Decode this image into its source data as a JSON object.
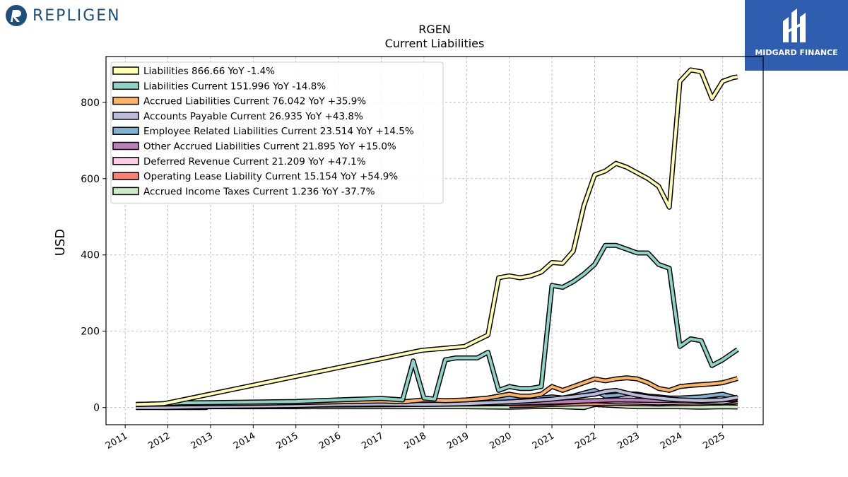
{
  "brand_left": "REPLIGEN",
  "brand_right": "MIDGARD FINANCE",
  "chart_data": {
    "type": "line",
    "title": "RGEN",
    "subtitle": "Current  Liabilities",
    "ylabel": "USD",
    "xlabel": "",
    "ylim": [
      -45,
      920
    ],
    "xlim": [
      2010.55,
      2025.95
    ],
    "yticks": [
      0,
      200,
      400,
      600,
      800
    ],
    "xticks": [
      "2011",
      "2012",
      "2013",
      "2014",
      "2015",
      "2016",
      "2017",
      "2018",
      "2019",
      "2020",
      "2021",
      "2022",
      "2023",
      "2024",
      "2025"
    ],
    "grid": true,
    "legend_position": "top-left",
    "series": [
      {
        "name": "Liabilities",
        "legend": "Liabilities  866.66 YoY -1.4%",
        "color": "#ffffb3",
        "points": [
          [
            2011.25,
            8
          ],
          [
            2011.9,
            10
          ],
          [
            2012.25,
            18
          ],
          [
            2017.95,
            150
          ],
          [
            2018.95,
            160
          ],
          [
            2019.5,
            190
          ],
          [
            2019.75,
            340
          ],
          [
            2020.0,
            345
          ],
          [
            2020.25,
            340
          ],
          [
            2020.5,
            345
          ],
          [
            2020.75,
            355
          ],
          [
            2021.0,
            380
          ],
          [
            2021.25,
            378
          ],
          [
            2021.5,
            410
          ],
          [
            2021.75,
            530
          ],
          [
            2022.0,
            610
          ],
          [
            2022.25,
            620
          ],
          [
            2022.5,
            640
          ],
          [
            2022.75,
            630
          ],
          [
            2023.0,
            615
          ],
          [
            2023.25,
            600
          ],
          [
            2023.5,
            580
          ],
          [
            2023.75,
            525
          ],
          [
            2024.0,
            855
          ],
          [
            2024.25,
            885
          ],
          [
            2024.5,
            880
          ],
          [
            2024.75,
            810
          ],
          [
            2025.0,
            855
          ],
          [
            2025.25,
            865
          ],
          [
            2025.35,
            866.66
          ]
        ]
      },
      {
        "name": "Liabilities Current",
        "legend": "Liabilities Current  151.996 YoY -14.8%",
        "color": "#8dd3c7",
        "points": [
          [
            2011.25,
            8
          ],
          [
            2011.9,
            10
          ],
          [
            2012.25,
            12
          ],
          [
            2013.0,
            13
          ],
          [
            2015.0,
            16
          ],
          [
            2016.0,
            20
          ],
          [
            2017.0,
            24
          ],
          [
            2017.5,
            20
          ],
          [
            2017.75,
            122
          ],
          [
            2018.0,
            25
          ],
          [
            2018.25,
            22
          ],
          [
            2018.5,
            125
          ],
          [
            2018.75,
            130
          ],
          [
            2019.0,
            130
          ],
          [
            2019.25,
            130
          ],
          [
            2019.5,
            145
          ],
          [
            2019.75,
            45
          ],
          [
            2020.0,
            55
          ],
          [
            2020.25,
            50
          ],
          [
            2020.5,
            50
          ],
          [
            2020.75,
            55
          ],
          [
            2021.0,
            320
          ],
          [
            2021.25,
            315
          ],
          [
            2021.5,
            330
          ],
          [
            2021.75,
            350
          ],
          [
            2022.0,
            375
          ],
          [
            2022.25,
            425
          ],
          [
            2022.5,
            425
          ],
          [
            2022.75,
            415
          ],
          [
            2023.0,
            405
          ],
          [
            2023.25,
            405
          ],
          [
            2023.5,
            375
          ],
          [
            2023.75,
            365
          ],
          [
            2024.0,
            160
          ],
          [
            2024.25,
            180
          ],
          [
            2024.5,
            175
          ],
          [
            2024.75,
            110
          ],
          [
            2025.0,
            125
          ],
          [
            2025.35,
            151.996
          ]
        ]
      },
      {
        "name": "Accrued Liabilities Current",
        "legend": "Accrued Liabilities Current  76.042 YoY +35.9%",
        "color": "#fdb462",
        "points": [
          [
            2011.25,
            8
          ],
          [
            2012.0,
            9
          ],
          [
            2013.0,
            10
          ],
          [
            2014.0,
            11
          ],
          [
            2015.0,
            13
          ],
          [
            2016.0,
            15
          ],
          [
            2017.0,
            17
          ],
          [
            2017.5,
            15
          ],
          [
            2018.0,
            20
          ],
          [
            2018.5,
            18
          ],
          [
            2019.0,
            20
          ],
          [
            2019.5,
            25
          ],
          [
            2020.0,
            35
          ],
          [
            2020.25,
            30
          ],
          [
            2020.5,
            30
          ],
          [
            2020.75,
            35
          ],
          [
            2021.0,
            55
          ],
          [
            2021.25,
            45
          ],
          [
            2021.5,
            55
          ],
          [
            2021.75,
            65
          ],
          [
            2022.0,
            75
          ],
          [
            2022.25,
            70
          ],
          [
            2022.5,
            75
          ],
          [
            2022.75,
            78
          ],
          [
            2023.0,
            75
          ],
          [
            2023.25,
            65
          ],
          [
            2023.5,
            50
          ],
          [
            2023.75,
            45
          ],
          [
            2024.0,
            55
          ],
          [
            2024.25,
            58
          ],
          [
            2024.5,
            60
          ],
          [
            2024.75,
            62
          ],
          [
            2025.0,
            65
          ],
          [
            2025.35,
            76.042
          ]
        ]
      },
      {
        "name": "Accounts Payable Current",
        "legend": "Accounts Payable Current  26.935 YoY +43.8%",
        "color": "#bebada",
        "points": [
          [
            2011.25,
            0
          ],
          [
            2011.9,
            0
          ],
          [
            2013.0,
            3
          ],
          [
            2015.0,
            5
          ],
          [
            2016.0,
            8
          ],
          [
            2017.0,
            9
          ],
          [
            2018.0,
            8
          ],
          [
            2019.0,
            10
          ],
          [
            2020.0,
            15
          ],
          [
            2020.5,
            18
          ],
          [
            2021.0,
            22
          ],
          [
            2021.5,
            28
          ],
          [
            2022.0,
            35
          ],
          [
            2022.25,
            42
          ],
          [
            2022.5,
            45
          ],
          [
            2022.75,
            38
          ],
          [
            2023.0,
            32
          ],
          [
            2023.25,
            28
          ],
          [
            2023.5,
            25
          ],
          [
            2023.75,
            22
          ],
          [
            2024.0,
            20
          ],
          [
            2024.5,
            18
          ],
          [
            2025.0,
            20
          ],
          [
            2025.35,
            26.935
          ]
        ]
      },
      {
        "name": "Employee Related Liabilities Current",
        "legend": "Employee Related Liabilities Current  23.514 YoY +14.5%",
        "color": "#80b1d3",
        "points": [
          [
            2011.25,
            5
          ],
          [
            2012.0,
            6
          ],
          [
            2013.0,
            8
          ],
          [
            2014.0,
            9
          ],
          [
            2015.0,
            10
          ],
          [
            2016.0,
            12
          ],
          [
            2017.0,
            12
          ],
          [
            2018.0,
            12
          ],
          [
            2019.0,
            14
          ],
          [
            2019.5,
            18
          ],
          [
            2020.0,
            25
          ],
          [
            2020.5,
            22
          ],
          [
            2021.0,
            28
          ],
          [
            2021.25,
            25
          ],
          [
            2021.5,
            30
          ],
          [
            2021.75,
            38
          ],
          [
            2022.0,
            45
          ],
          [
            2022.25,
            30
          ],
          [
            2022.5,
            32
          ],
          [
            2022.75,
            36
          ],
          [
            2023.0,
            35
          ],
          [
            2023.25,
            30
          ],
          [
            2023.5,
            28
          ],
          [
            2023.75,
            25
          ],
          [
            2024.0,
            25
          ],
          [
            2024.5,
            28
          ],
          [
            2025.0,
            35
          ],
          [
            2025.35,
            23.514
          ]
        ]
      },
      {
        "name": "Other Accrued Liabilities Current",
        "legend": "Other Accrued Liabilities Current  21.895 YoY +15.0%",
        "color": "#bc80bd",
        "points": [
          [
            2011.25,
            4
          ],
          [
            2013.0,
            6
          ],
          [
            2015.0,
            7
          ],
          [
            2017.0,
            8
          ],
          [
            2018.0,
            9
          ],
          [
            2019.0,
            10
          ],
          [
            2020.0,
            11
          ],
          [
            2021.0,
            14
          ],
          [
            2022.0,
            18
          ],
          [
            2022.5,
            20
          ],
          [
            2023.0,
            19
          ],
          [
            2023.5,
            18
          ],
          [
            2024.0,
            19
          ],
          [
            2025.0,
            20
          ],
          [
            2025.35,
            21.895
          ]
        ]
      },
      {
        "name": "Deferred Revenue Current",
        "legend": "Deferred Revenue Current  21.209 YoY +47.1%",
        "color": "#fccde5",
        "points": [
          [
            2011.9,
            0
          ],
          [
            2012.9,
            0
          ],
          [
            2013.0,
            5
          ],
          [
            2015.0,
            6
          ],
          [
            2017.0,
            7
          ],
          [
            2018.0,
            8
          ],
          [
            2019.0,
            9
          ],
          [
            2020.0,
            10
          ],
          [
            2021.0,
            12
          ],
          [
            2021.5,
            15
          ],
          [
            2022.0,
            18
          ],
          [
            2022.5,
            15
          ],
          [
            2023.0,
            14
          ],
          [
            2023.5,
            12
          ],
          [
            2024.0,
            14
          ],
          [
            2024.5,
            15
          ],
          [
            2025.0,
            14
          ],
          [
            2025.35,
            21.209
          ]
        ]
      },
      {
        "name": "Operating Lease Liability Current",
        "legend": "Operating Lease Liability Current  15.154 YoY +54.9%",
        "color": "#fb8072",
        "points": [
          [
            2020.0,
            5
          ],
          [
            2020.5,
            6
          ],
          [
            2021.0,
            8
          ],
          [
            2021.5,
            9
          ],
          [
            2022.0,
            10
          ],
          [
            2022.5,
            11
          ],
          [
            2023.0,
            10
          ],
          [
            2023.5,
            9
          ],
          [
            2024.0,
            10
          ],
          [
            2024.5,
            11
          ],
          [
            2025.0,
            12
          ],
          [
            2025.35,
            15.154
          ]
        ]
      },
      {
        "name": "Accrued Income Taxes Current",
        "legend": "Accrued Income Taxes Current  1.236 YoY -37.7%",
        "color": "#ccebc5",
        "points": [
          [
            2011.25,
            1
          ],
          [
            2013.0,
            2
          ],
          [
            2015.0,
            2
          ],
          [
            2017.0,
            2
          ],
          [
            2018.0,
            2
          ],
          [
            2019.0,
            2
          ],
          [
            2020.0,
            1
          ],
          [
            2021.0,
            3
          ],
          [
            2021.75,
            0
          ],
          [
            2022.0,
            8
          ],
          [
            2022.5,
            5
          ],
          [
            2023.0,
            2
          ],
          [
            2024.0,
            2
          ],
          [
            2024.5,
            1
          ],
          [
            2025.0,
            2
          ],
          [
            2025.35,
            1.236
          ]
        ]
      }
    ]
  }
}
